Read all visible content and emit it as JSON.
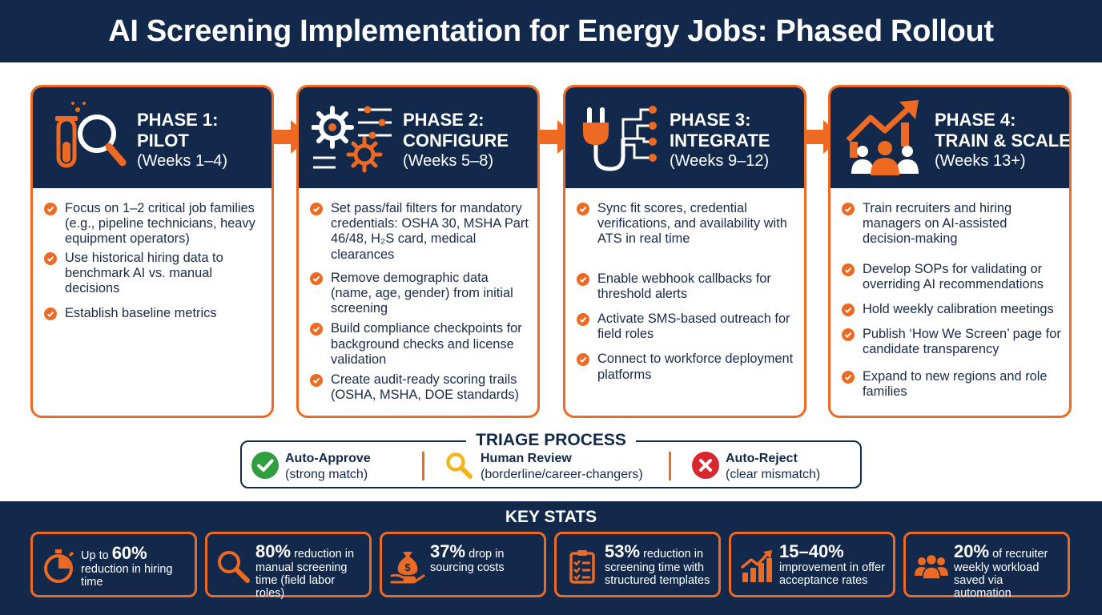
{
  "title": "AI Screening Implementation for Energy Jobs: Phased Rollout",
  "phases": [
    {
      "title_line1": "PHASE 1:",
      "title_line2": "PILOT",
      "weeks": "(Weeks 1–4)",
      "icon": "test-tube-magnifier-icon",
      "items": [
        "Focus on 1–2 critical job families (e.g., pipeline technicians, heavy equipment operators)",
        "Use historical hiring data to benchmark AI vs. manual decisions",
        "Establish baseline metrics"
      ]
    },
    {
      "title_line1": "PHASE 2:",
      "title_line2": "CONFIGURE",
      "weeks": "(Weeks 5–8)",
      "icon": "gears-sliders-icon",
      "items": [
        "Set pass/fail filters for mandatory credentials: OSHA 30, MSHA Part 46/48, H₂S card, medical clearances",
        "Remove demographic data (name, age, gender) from initial screening",
        "Build compliance checkpoints for background checks and license validation",
        "Create audit-ready scoring trails (OSHA, MSHA, DOE standards)"
      ]
    },
    {
      "title_line1": "PHASE 3:",
      "title_line2": "INTEGRATE",
      "weeks": "(Weeks 9–12)",
      "icon": "plug-circuit-icon",
      "items": [
        "Sync fit scores, credential verifications, and availability with ATS in real time",
        "Enable webhook callbacks for threshold alerts",
        "Activate SMS-based outreach for field roles",
        "Connect to workforce deployment platforms"
      ]
    },
    {
      "title_line1": "PHASE 4:",
      "title_line2": "TRAIN & SCALE",
      "weeks": "(Weeks 13+)",
      "icon": "growth-team-icon",
      "items": [
        "Train recruiters and hiring managers on AI-assisted decision-making",
        "Develop SOPs for validating or overriding AI recommendations",
        "Hold weekly calibration meetings",
        "Publish ‘How We Screen’ page for candidate transparency",
        "Expand to new regions and role families"
      ]
    }
  ],
  "triage": {
    "title": "TRIAGE PROCESS",
    "items": [
      {
        "label": "Auto-Approve",
        "detail": "(strong match)",
        "icon": "check-circle-icon",
        "color": "#2e9e3e"
      },
      {
        "label": "Human Review",
        "detail": "(borderline/career-changers)",
        "icon": "magnifier-icon",
        "color": "#f2b51b"
      },
      {
        "label": "Auto-Reject",
        "detail": "(clear mismatch)",
        "icon": "x-circle-icon",
        "color": "#d8262c"
      }
    ]
  },
  "stats": {
    "title": "KEY STATS",
    "items": [
      {
        "prefix": "Up to ",
        "big": "60%",
        "suffix": "",
        "rest": "reduction in hiring time",
        "icon": "stopwatch-icon"
      },
      {
        "prefix": "",
        "big": "80%",
        "suffix": " reduction in",
        "rest": "manual screening time (field labor roles)",
        "icon": "magnifier-icon"
      },
      {
        "prefix": "",
        "big": "37%",
        "suffix": " drop in",
        "rest": "sourcing costs",
        "icon": "money-bag-hand-icon"
      },
      {
        "prefix": "",
        "big": "53%",
        "suffix": " reduction in",
        "rest": "screening time with structured templates",
        "icon": "checklist-clipboard-icon"
      },
      {
        "prefix": "",
        "big": "15–40%",
        "suffix": "",
        "rest": "improvement in offer acceptance rates",
        "icon": "bar-chart-arrow-icon"
      },
      {
        "prefix": "",
        "big": "20%",
        "suffix": " of recruiter",
        "rest": "weekly workload saved via automation",
        "icon": "people-group-icon"
      }
    ]
  },
  "colors": {
    "navy": "#13294b",
    "orange": "#ee6a22",
    "white": "#ffffff"
  }
}
